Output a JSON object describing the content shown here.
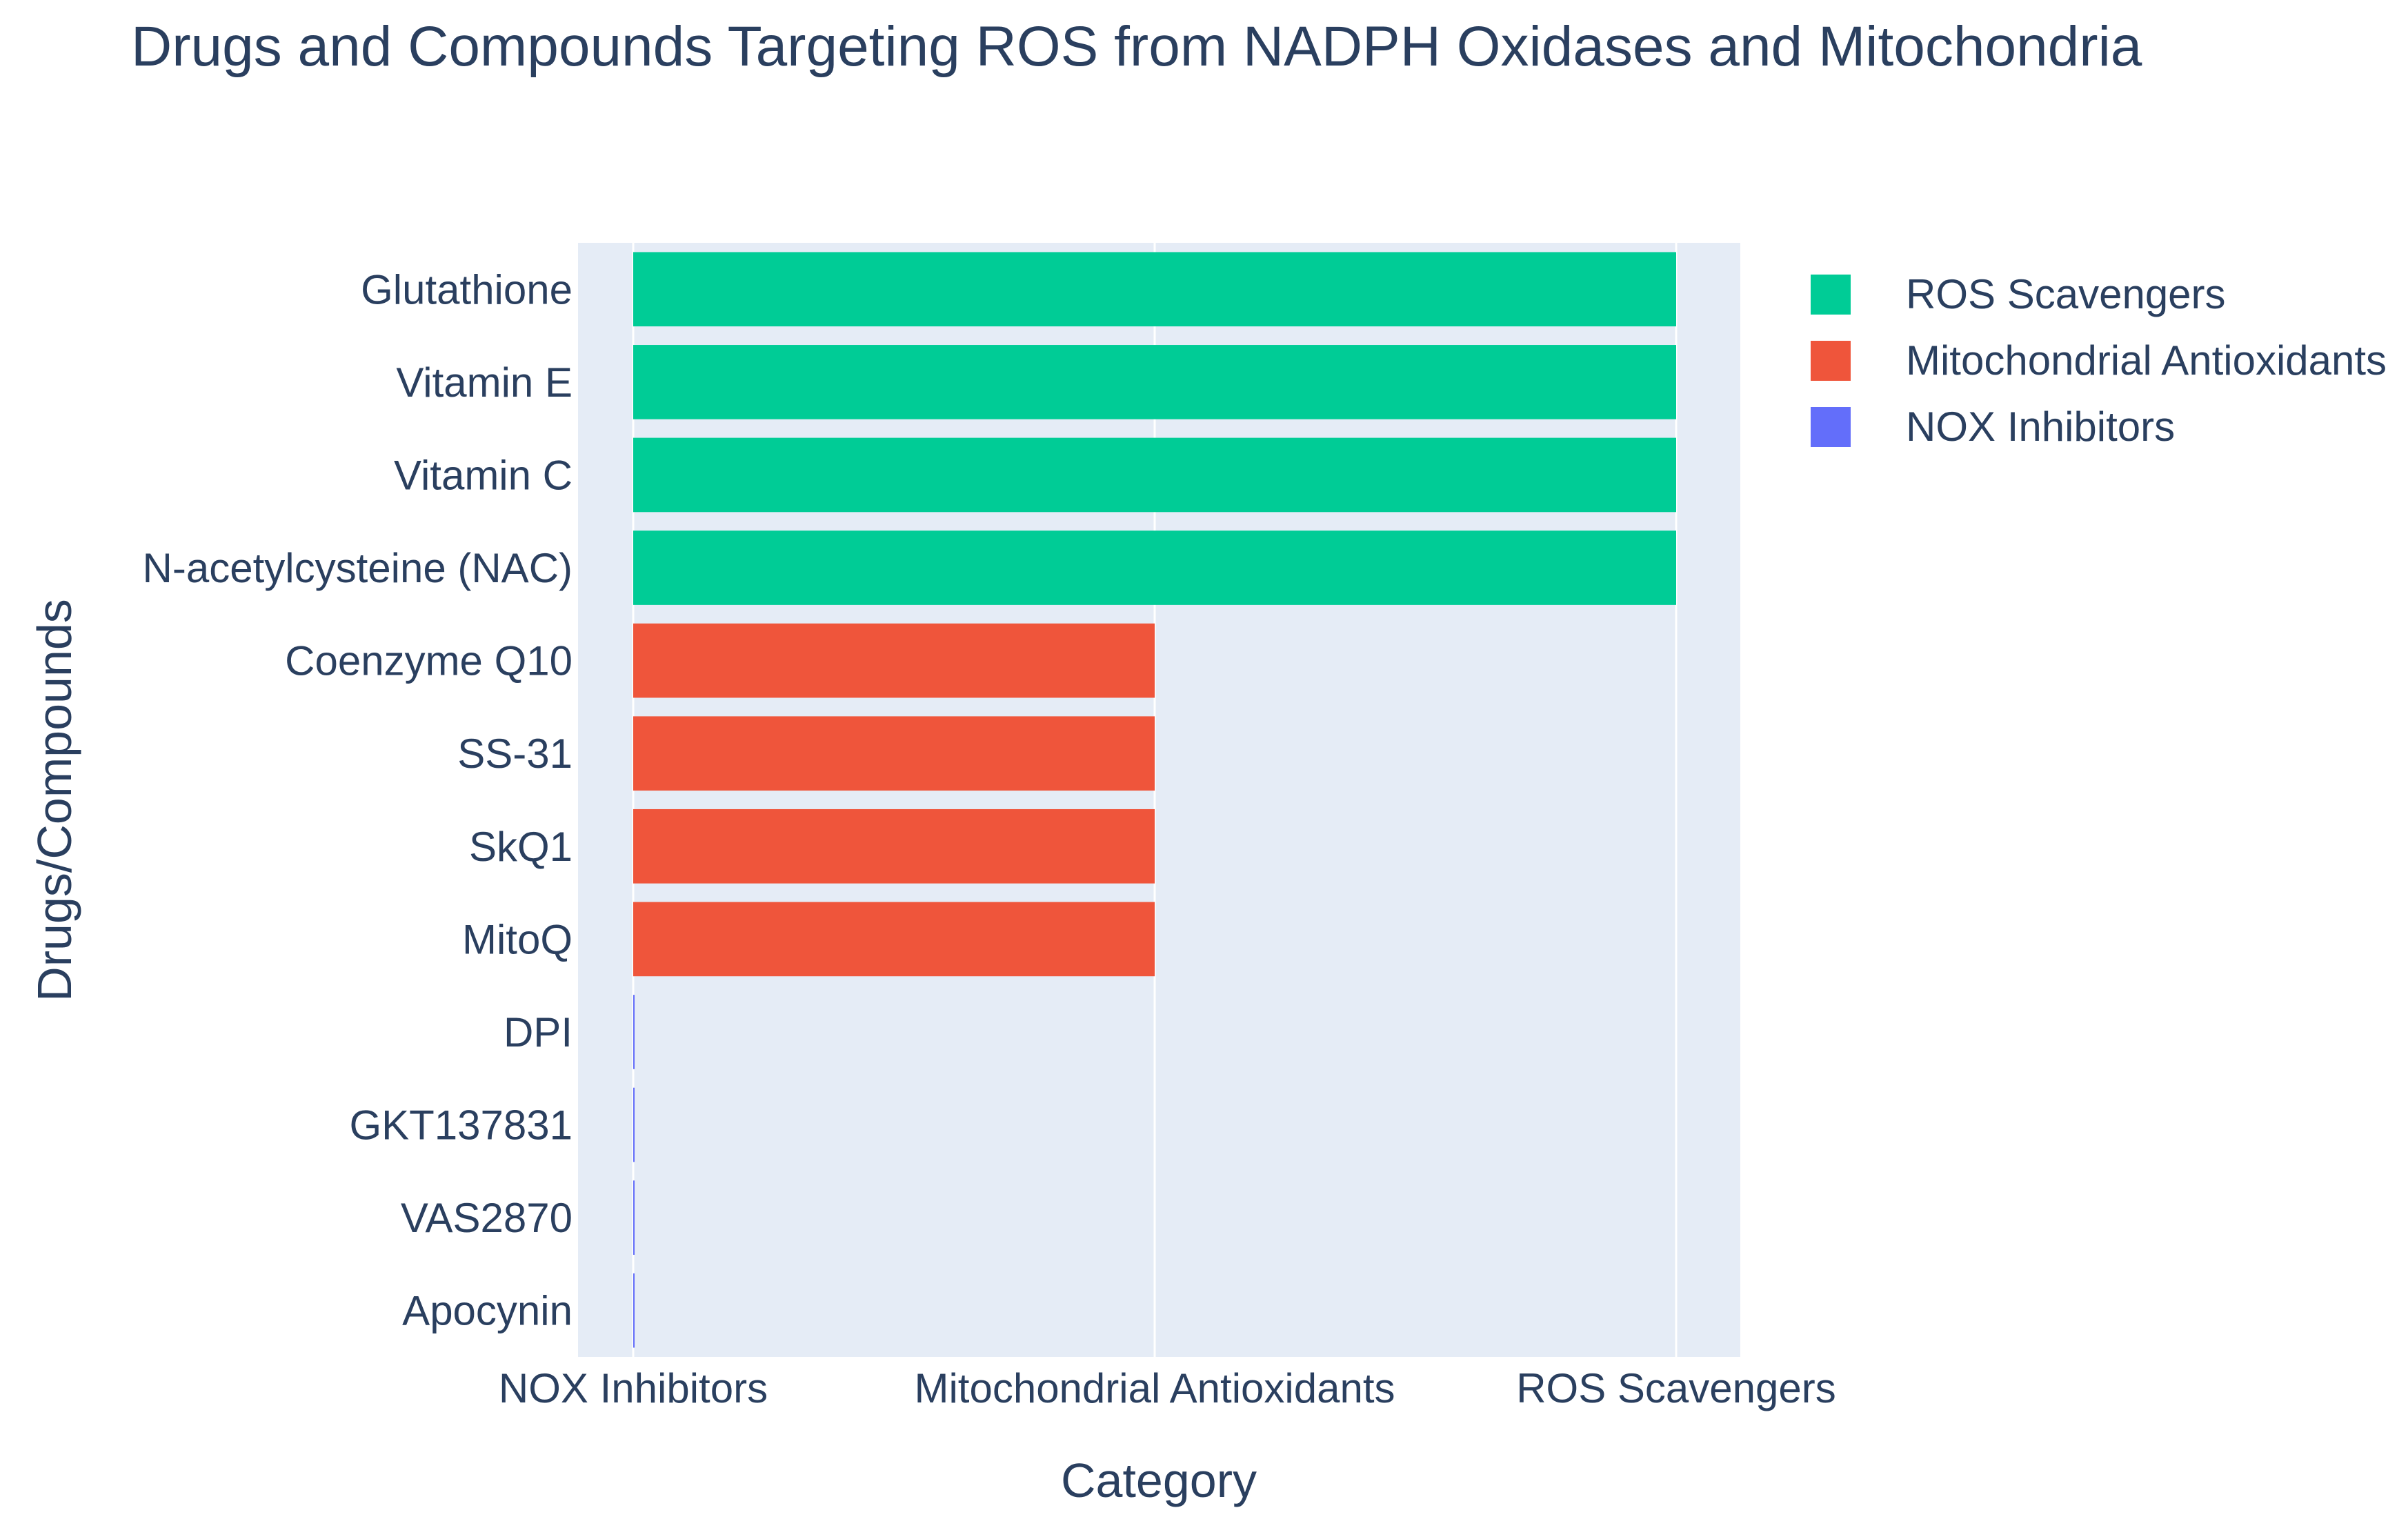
{
  "chart_data": {
    "type": "bar",
    "orientation": "horizontal",
    "title": "Drugs and Compounds Targeting ROS from NADPH Oxidases and Mitochondria",
    "xlabel": "Category",
    "ylabel": "Drugs/Compounds",
    "x_categories": [
      "NOX Inhibitors",
      "Mitochondrial Antioxidants",
      "ROS Scavengers"
    ],
    "categories": [
      "Apocynin",
      "VAS2870",
      "GKT137831",
      "DPI",
      "MitoQ",
      "SkQ1",
      "SS-31",
      "Coenzyme Q10",
      "N-acetylcysteine (NAC)",
      "Vitamin C",
      "Vitamin E",
      "Glutathione"
    ],
    "series": [
      {
        "name": "NOX Inhibitors",
        "color": "#636efa",
        "items": [
          "Apocynin",
          "VAS2870",
          "GKT137831",
          "DPI"
        ],
        "value": "NOX Inhibitors"
      },
      {
        "name": "Mitochondrial Antioxidants",
        "color": "#ef553b",
        "items": [
          "MitoQ",
          "SkQ1",
          "SS-31",
          "Coenzyme Q10"
        ],
        "value": "Mitochondrial Antioxidants"
      },
      {
        "name": "ROS Scavengers",
        "color": "#00cc96",
        "items": [
          "N-acetylcysteine (NAC)",
          "Vitamin C",
          "Vitamin E",
          "Glutathione"
        ],
        "value": "ROS Scavengers"
      }
    ],
    "legend_order": [
      "ROS Scavengers",
      "Mitochondrial Antioxidants",
      "NOX Inhibitors"
    ],
    "legend_position": "top-right",
    "grid": true,
    "plot_bgcolor": "#e5ecf6"
  }
}
